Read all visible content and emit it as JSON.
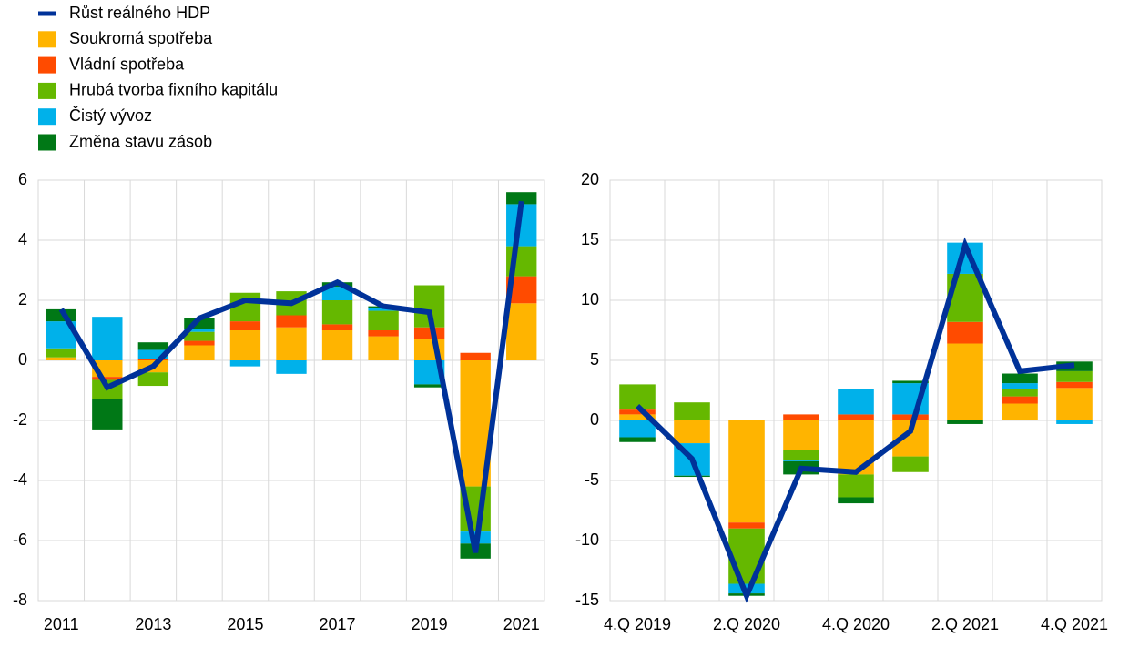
{
  "chart_data": [
    {
      "type": "bar",
      "stacked": true,
      "grid": true,
      "categories": [
        "2011",
        null,
        "2013",
        null,
        "2015",
        null,
        "2017",
        null,
        "2019",
        null,
        "2021"
      ],
      "ylim": [
        -8,
        6
      ],
      "yticks": [
        -8,
        -6,
        -4,
        -2,
        0,
        2,
        4,
        6
      ],
      "series": [
        {
          "name": "Růst reálného HDP",
          "type": "line",
          "color": "#003299",
          "values": [
            1.7,
            -0.9,
            -0.2,
            1.4,
            2.0,
            1.9,
            2.6,
            1.8,
            1.6,
            -6.4,
            5.3
          ]
        },
        {
          "name": "Soukromá spotřeba",
          "color": "#ffb400",
          "values": [
            0.1,
            -0.55,
            -0.4,
            0.5,
            1.0,
            1.1,
            1.0,
            0.8,
            0.7,
            -4.2,
            1.9
          ]
        },
        {
          "name": "Vládní spotřeba",
          "color": "#ff4b00",
          "values": [
            0.0,
            -0.1,
            0.05,
            0.15,
            0.3,
            0.4,
            0.2,
            0.2,
            0.4,
            0.25,
            0.9
          ]
        },
        {
          "name": "Hrubá tvorba fixního kapitálu",
          "color": "#65b800",
          "values": [
            0.3,
            -0.65,
            -0.45,
            0.3,
            0.95,
            0.8,
            0.8,
            0.65,
            1.4,
            -1.5,
            1.0
          ]
        },
        {
          "name": "Čistý vývoz",
          "color": "#00b1ea",
          "values": [
            0.9,
            1.45,
            0.3,
            0.1,
            -0.2,
            -0.45,
            0.45,
            0.1,
            -0.8,
            -0.4,
            1.4
          ]
        },
        {
          "name": "Změna stavu zásob",
          "color": "#007816",
          "values": [
            0.4,
            -1.0,
            0.25,
            0.35,
            0.0,
            0.0,
            0.15,
            0.05,
            -0.1,
            -0.5,
            0.4
          ]
        }
      ]
    },
    {
      "type": "bar",
      "stacked": true,
      "grid": true,
      "categories": [
        "4.Q 2019",
        null,
        "2.Q 2020",
        null,
        "4.Q 2020",
        null,
        "2.Q 2021",
        null,
        "4.Q 2021"
      ],
      "ylim": [
        -15,
        20
      ],
      "yticks": [
        -15,
        -10,
        -5,
        0,
        5,
        10,
        15,
        20
      ],
      "series": [
        {
          "type": "line",
          "color": "#003299",
          "values": [
            1.2,
            -3.2,
            -14.6,
            -4.0,
            -4.3,
            -0.9,
            14.6,
            4.1,
            4.6
          ]
        },
        {
          "color": "#ffb400",
          "values": [
            0.5,
            -1.9,
            -8.5,
            -2.5,
            -4.5,
            -3.0,
            6.4,
            1.4,
            2.7
          ]
        },
        {
          "color": "#ff4b00",
          "values": [
            0.4,
            0.0,
            -0.5,
            0.5,
            0.5,
            0.5,
            1.8,
            0.6,
            0.5
          ]
        },
        {
          "color": "#65b800",
          "values": [
            2.1,
            1.5,
            -4.6,
            -0.8,
            -1.9,
            -1.3,
            4.0,
            0.6,
            0.9
          ]
        },
        {
          "color": "#00b1ea",
          "values": [
            -1.4,
            -2.7,
            -0.8,
            -0.1,
            2.1,
            2.6,
            2.6,
            0.5,
            -0.3
          ]
        },
        {
          "color": "#007816",
          "values": [
            -0.4,
            -0.1,
            -0.2,
            -1.1,
            -0.5,
            0.2,
            -0.3,
            0.8,
            0.8
          ]
        }
      ]
    }
  ]
}
